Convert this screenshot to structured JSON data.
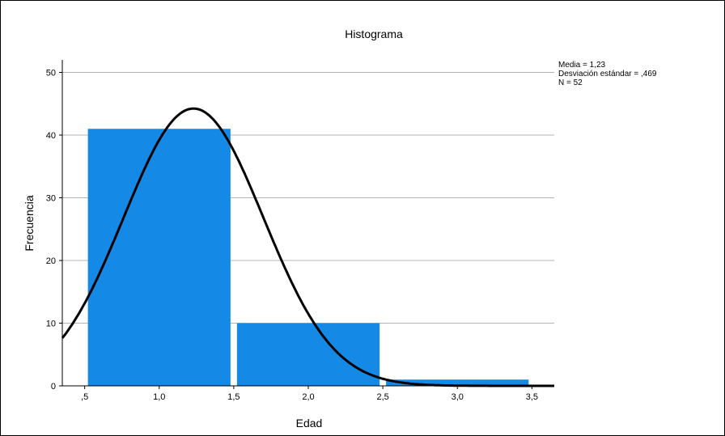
{
  "chart_data": {
    "type": "histogram",
    "title": "Histograma",
    "xlabel": "Edad",
    "ylabel": "Frecuencia",
    "bins": [
      {
        "from": 0.5,
        "to": 1.5,
        "count": 41
      },
      {
        "from": 1.5,
        "to": 2.5,
        "count": 10
      },
      {
        "from": 2.5,
        "to": 3.5,
        "count": 1
      }
    ],
    "xlim": [
      0.35,
      3.65
    ],
    "ylim": [
      0,
      52
    ],
    "x_ticks": [
      ",5",
      "1,0",
      "1,5",
      "2,0",
      "2,5",
      "3,0",
      "3,5"
    ],
    "y_ticks": [
      "0",
      "10",
      "20",
      "30",
      "40",
      "50"
    ],
    "grid": "horizontal",
    "normal_curve": {
      "mean": 1.23,
      "sd": 0.469,
      "n": 52,
      "bin_width": 1.0
    },
    "stats": [
      "Media = 1,23",
      "Desviación estándar = ,469",
      "N = 52"
    ],
    "bar_color": "#1589e6",
    "curve_color": "#000000",
    "grid_color": "#b4b4b4"
  }
}
